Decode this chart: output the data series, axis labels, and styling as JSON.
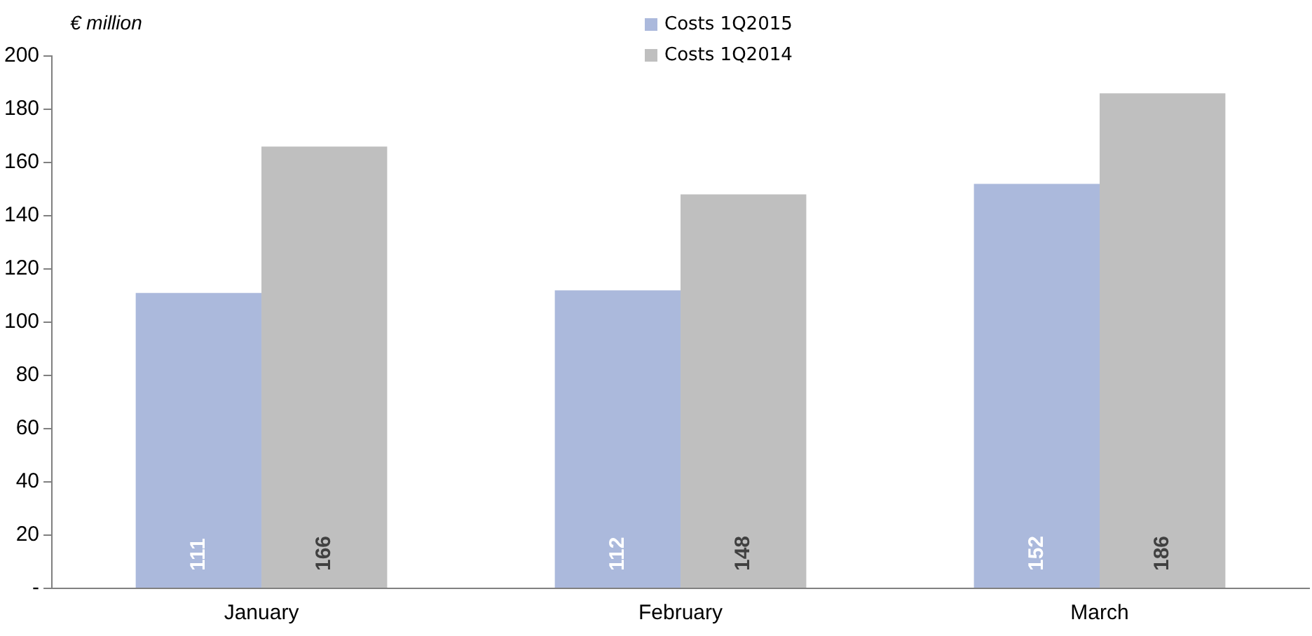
{
  "chart_data": {
    "type": "bar",
    "ylabel": "€ million",
    "categories": [
      "January",
      "February",
      "March"
    ],
    "series": [
      {
        "name": "Costs 1Q2015",
        "color": "#abb9dc",
        "values": [
          111,
          112,
          152
        ]
      },
      {
        "name": "Costs 1Q2014",
        "color": "#bfbfbf",
        "values": [
          166,
          148,
          186
        ]
      }
    ],
    "ylim": [
      0,
      200
    ],
    "yticks": [
      {
        "value": 0,
        "label": "-"
      },
      20,
      40,
      60,
      80,
      100,
      120,
      140,
      160,
      180,
      200
    ],
    "grid": false,
    "legend": "top",
    "data_labels": true
  }
}
